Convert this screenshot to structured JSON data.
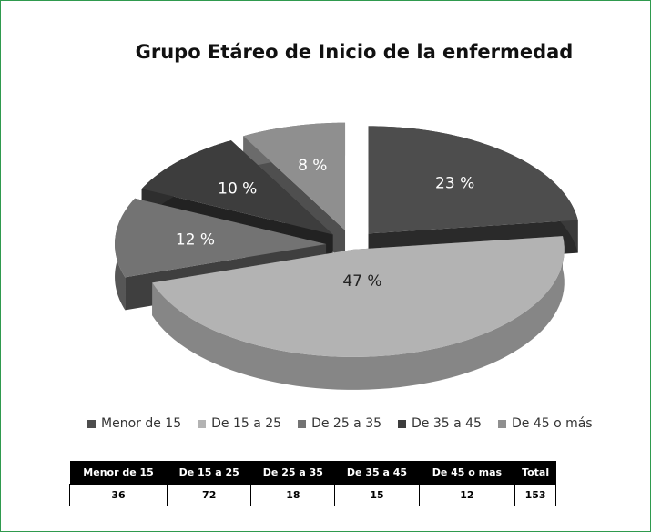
{
  "chart_data": {
    "type": "pie",
    "title": "Grupo Etáreo de Inicio de la enfermedad",
    "categories": [
      "Menor de 15",
      "De 15 a 25",
      "De 25 a 35",
      "De 35 a 45",
      "De 45 o más"
    ],
    "values": [
      23,
      47,
      12,
      10,
      8
    ],
    "value_labels": [
      "23 %",
      "47 %",
      "12 %",
      "10 %",
      "8 %"
    ],
    "colors": [
      "#4d4d4d",
      "#b3b3b3",
      "#737373",
      "#3d3d3d",
      "#8f8f8f"
    ]
  },
  "table": {
    "headers": [
      "Menor de 15",
      "De 15 a 25",
      "De 25 a 35",
      "De 35 a 45",
      "De 45 o mas",
      "Total"
    ],
    "rows": [
      [
        36,
        72,
        18,
        15,
        12,
        153
      ]
    ]
  }
}
